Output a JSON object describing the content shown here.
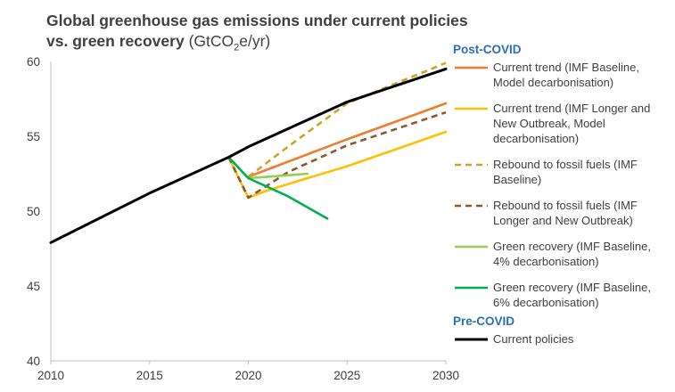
{
  "chart_data": {
    "type": "line",
    "title_main": "Global greenhouse gas emissions under current policies vs. green recovery",
    "title_unit_pre": "(GtCO",
    "title_unit_sub": "2",
    "title_unit_post": "e/yr)",
    "xlim": [
      2010,
      2030
    ],
    "ylim": [
      40,
      60
    ],
    "x_ticks": [
      2010,
      2015,
      2020,
      2025,
      2030
    ],
    "y_ticks": [
      40,
      45,
      50,
      55,
      60
    ],
    "grid": false,
    "legend_placement": "right",
    "legend_groups": [
      {
        "heading": "Post-COVID",
        "series_indices": [
          0,
          1,
          2,
          3,
          4,
          5
        ]
      },
      {
        "heading": "Pre-COVID",
        "series_indices": [
          6
        ]
      }
    ],
    "series": [
      {
        "name_lines": [
          "Current trend (IMF Baseline,",
          "Model decarbonisation)"
        ],
        "color": "#ed7d31",
        "dash": "solid",
        "points": [
          [
            2020,
            52.3
          ],
          [
            2025,
            54.8
          ],
          [
            2030,
            57.2
          ]
        ]
      },
      {
        "name_lines": [
          "Current trend (IMF Longer and",
          "New Outbreak, Model",
          "decarbonisation)"
        ],
        "color": "#ffc000",
        "dash": "solid",
        "points": [
          [
            2019,
            53.6
          ],
          [
            2020,
            50.9
          ],
          [
            2021,
            51.4
          ],
          [
            2023,
            52.2
          ],
          [
            2025,
            53.0
          ],
          [
            2030,
            55.3
          ]
        ]
      },
      {
        "name_lines": [
          "Rebound to fossil fuels (IMF",
          "Baseline)"
        ],
        "color": "#c9a227",
        "dash": "dashed",
        "points": [
          [
            2020,
            52.3
          ],
          [
            2022,
            54.3
          ],
          [
            2025,
            57.2
          ],
          [
            2030,
            59.9
          ]
        ]
      },
      {
        "name_lines": [
          "Rebound to fossil fuels (IMF",
          "Longer and New Outbreak)"
        ],
        "color": "#8c5a2b",
        "dash": "dashed",
        "points": [
          [
            2019,
            53.6
          ],
          [
            2020,
            50.9
          ],
          [
            2022,
            52.6
          ],
          [
            2025,
            54.4
          ],
          [
            2030,
            56.6
          ]
        ]
      },
      {
        "name_lines": [
          "Green recovery (IMF Baseline,",
          "4% decarbonisation)"
        ],
        "color": "#92d050",
        "dash": "solid",
        "points": [
          [
            2019,
            53.6
          ],
          [
            2020,
            52.2
          ],
          [
            2021,
            52.3
          ],
          [
            2023,
            52.5
          ]
        ]
      },
      {
        "name_lines": [
          "Green recovery (IMF Baseline,",
          "6% decarbonisation)"
        ],
        "color": "#00b050",
        "dash": "solid",
        "points": [
          [
            2019,
            53.6
          ],
          [
            2020,
            52.2
          ],
          [
            2022,
            51.0
          ],
          [
            2024,
            49.5
          ]
        ]
      },
      {
        "name_lines": [
          "Current policies"
        ],
        "color": "#000000",
        "dash": "solid",
        "points": [
          [
            2010,
            47.9
          ],
          [
            2015,
            51.2
          ],
          [
            2019,
            53.6
          ],
          [
            2020,
            54.3
          ],
          [
            2025,
            57.3
          ],
          [
            2030,
            59.5
          ]
        ]
      }
    ]
  }
}
